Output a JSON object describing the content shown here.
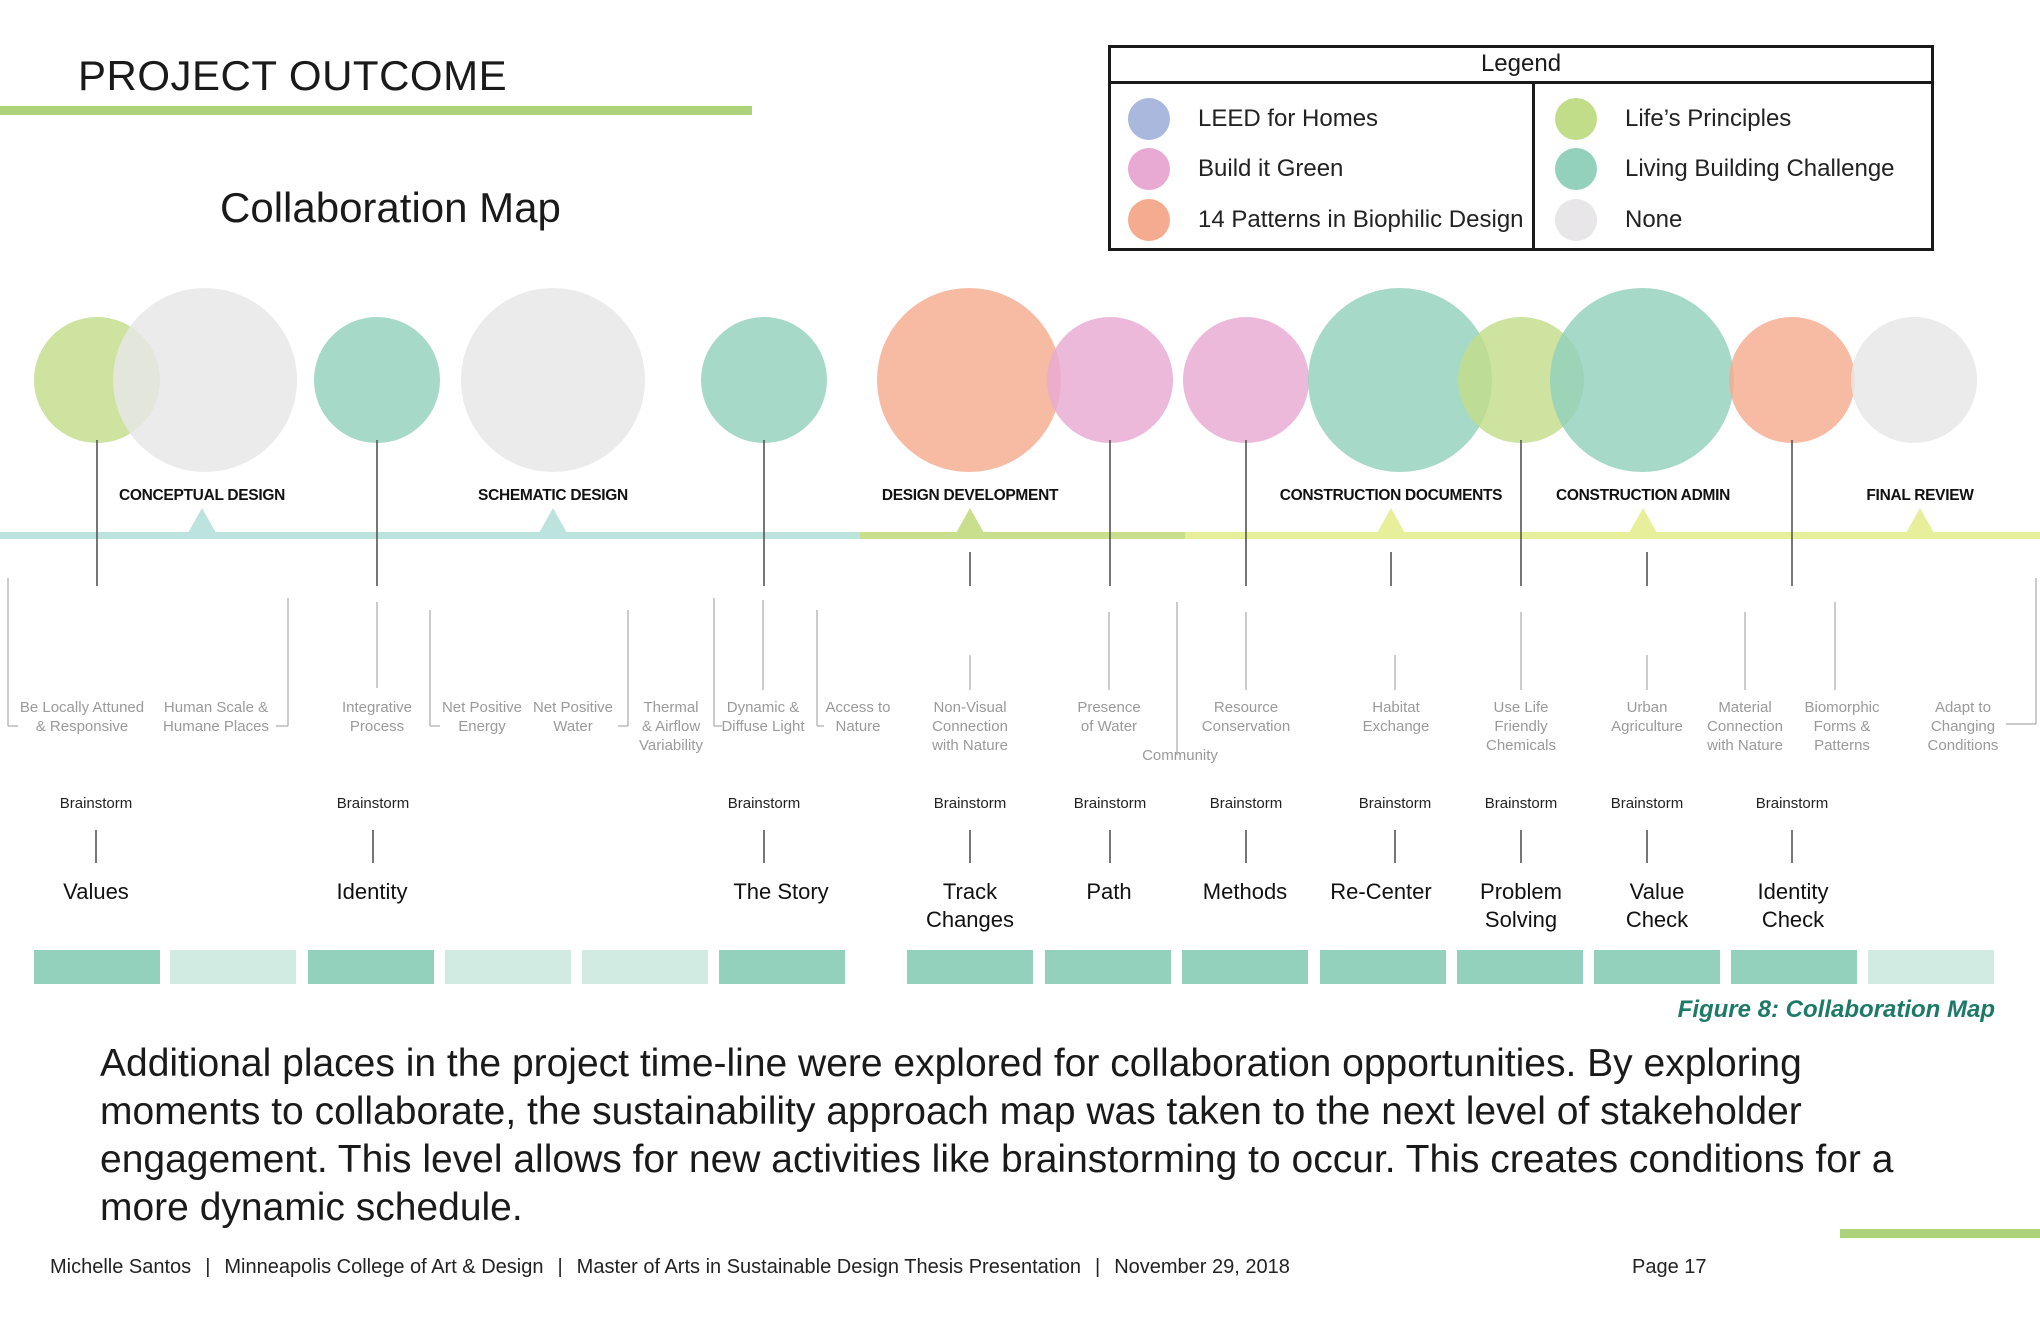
{
  "header": {
    "title": "PROJECT OUTCOME",
    "accent_color": "#acd27a"
  },
  "map_title": "Collaboration Map",
  "legend": {
    "title": "Legend",
    "left_items": [
      {
        "label": "LEED for Homes",
        "color": "#a9b8dc"
      },
      {
        "label": "Build it Green",
        "color": "#e8a9d2"
      },
      {
        "label": "14 Patterns in Biophilic Design",
        "color": "#f5ab8f"
      }
    ],
    "right_items": [
      {
        "label": "Life’s Principles",
        "color": "#c2dd8a"
      },
      {
        "label": "Living Building Challenge",
        "color": "#93d1bc"
      },
      {
        "label": "None",
        "color": "#e8e6e8"
      }
    ]
  },
  "colors": {
    "leed": "#a9b8dc",
    "build_it_green": "#e8a9d2",
    "biophilic": "#f5ab8f",
    "lifes_principles": "#c2dd8a",
    "living_building": "#93d1bc",
    "none": "#e8e6e8",
    "timeline_teal": "#bde3df",
    "timeline_green": "#c9df8e",
    "timeline_yellow": "#e8ef9a",
    "block_dark": "#93d1bc",
    "block_light": "#d2ebe2"
  },
  "phases": [
    {
      "label": "CONCEPTUAL DESIGN"
    },
    {
      "label": "SCHEMATIC DESIGN"
    },
    {
      "label": "DESIGN DEVELOPMENT"
    },
    {
      "label": "CONSTRUCTION DOCUMENTS"
    },
    {
      "label": "CONSTRUCTION ADMIN"
    },
    {
      "label": "FINAL REVIEW"
    }
  ],
  "bubbles": [
    {
      "category": "lifes_principles",
      "size": "small"
    },
    {
      "category": "none",
      "size": "large"
    },
    {
      "category": "living_building",
      "size": "small"
    },
    {
      "category": "none",
      "size": "large"
    },
    {
      "category": "living_building",
      "size": "small"
    },
    {
      "category": "biophilic",
      "size": "large"
    },
    {
      "category": "build_it_green",
      "size": "small"
    },
    {
      "category": "build_it_green",
      "size": "small"
    },
    {
      "category": "living_building",
      "size": "large"
    },
    {
      "category": "lifes_principles",
      "size": "small"
    },
    {
      "category": "living_building",
      "size": "large"
    },
    {
      "category": "biophilic",
      "size": "small"
    },
    {
      "category": "none",
      "size": "small"
    }
  ],
  "topics": [
    {
      "lines": [
        "Be Locally Attuned",
        "& Responsive"
      ]
    },
    {
      "lines": [
        "Human Scale &",
        "Humane Places"
      ]
    },
    {
      "lines": [
        "Integrative",
        "Process"
      ]
    },
    {
      "lines": [
        "Net Positive",
        "Energy"
      ]
    },
    {
      "lines": [
        "Net Positive",
        "Water"
      ]
    },
    {
      "lines": [
        "Thermal",
        "& Airflow",
        "Variability"
      ]
    },
    {
      "lines": [
        "Dynamic &",
        "Diffuse Light"
      ]
    },
    {
      "lines": [
        "Access to",
        "Nature"
      ]
    },
    {
      "lines": [
        "Non-Visual",
        "Connection",
        "with Nature"
      ]
    },
    {
      "lines": [
        "Presence",
        "of Water"
      ]
    },
    {
      "lines": [
        "Community"
      ]
    },
    {
      "lines": [
        "Resource",
        "Conservation"
      ]
    },
    {
      "lines": [
        "Habitat",
        "Exchange"
      ]
    },
    {
      "lines": [
        "Use Life",
        "Friendly",
        "Chemicals"
      ]
    },
    {
      "lines": [
        "Urban",
        "Agriculture"
      ]
    },
    {
      "lines": [
        "Material",
        "Connection",
        "with Nature"
      ]
    },
    {
      "lines": [
        "Biomorphic",
        "Forms &",
        "Patterns"
      ]
    },
    {
      "lines": [
        "Adapt to",
        "Changing",
        "Conditions"
      ]
    }
  ],
  "activity_label": "Brainstorm",
  "activities": [
    {
      "lines": [
        "Values"
      ]
    },
    {
      "lines": [
        "Identity"
      ]
    },
    {
      "lines": [
        "The Story"
      ]
    },
    {
      "lines": [
        "Track",
        "Changes"
      ]
    },
    {
      "lines": [
        "Path"
      ]
    },
    {
      "lines": [
        "Methods"
      ]
    },
    {
      "lines": [
        "Re-Center"
      ]
    },
    {
      "lines": [
        "Problem",
        "Solving"
      ]
    },
    {
      "lines": [
        "Value",
        "Check"
      ]
    },
    {
      "lines": [
        "Identity",
        "Check"
      ]
    }
  ],
  "schedule_blocks": [
    "dark",
    "light",
    "dark",
    "light",
    "light",
    "dark",
    "dark",
    "dark",
    "dark",
    "dark",
    "dark",
    "dark",
    "dark",
    "light"
  ],
  "caption": "Figure 8: Collaboration Map",
  "body_text": "Additional places in the project time-line were explored for collaboration opportunities. By exploring moments to collaborate, the sustainability approach map was taken to the next level of stakeholder engagement. This level allows for new activities like brainstorming to occur. This creates conditions for a more dynamic schedule.",
  "footer": {
    "author": "Michelle Santos",
    "school": "Minneapolis College of Art & Design",
    "program": "Master of Arts  in Sustainable Design Thesis Presentation",
    "date": "November 29, 2018",
    "page": "Page 17"
  }
}
